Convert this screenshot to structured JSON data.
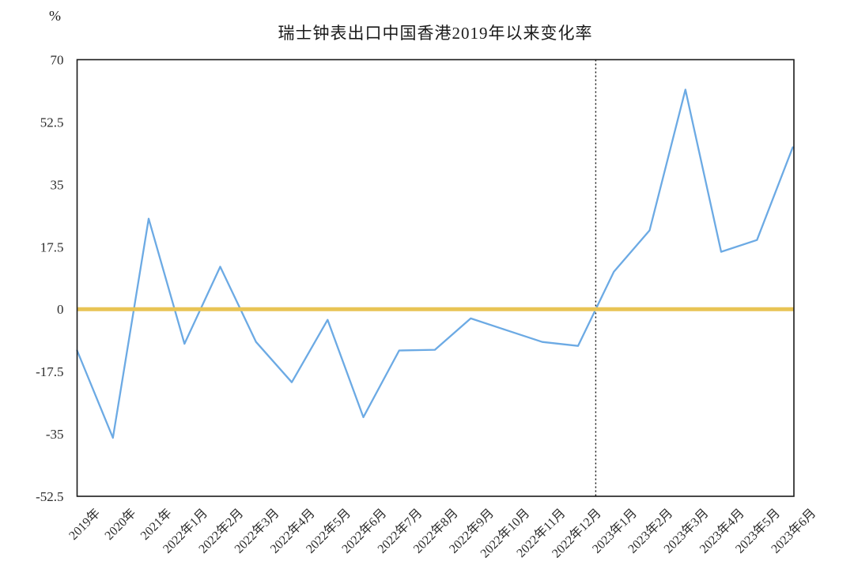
{
  "page": {
    "unit_label": "%"
  },
  "chart_data": {
    "type": "line",
    "title": "瑞士钟表出口中国香港2019年以来变化率",
    "unit": "%",
    "xlabel": "",
    "ylabel": "%",
    "categories": [
      "2019年",
      "2020年",
      "2021年",
      "2022年1月",
      "2022年2月",
      "2022年3月",
      "2022年4月",
      "2022年5月",
      "2022年6月",
      "2022年7月",
      "2022年8月",
      "2022年9月",
      "2022年10月",
      "2022年11月",
      "2022年12月",
      "2023年1月",
      "2023年2月",
      "2023年3月",
      "2023年4月",
      "2023年5月",
      "2023年6月"
    ],
    "values": [
      -11.6,
      -36.1,
      25.4,
      -9.7,
      11.9,
      -9.2,
      -20.5,
      -3.0,
      -30.3,
      -11.6,
      -11.4,
      -2.6,
      -5.9,
      -9.2,
      -10.3,
      10.5,
      22.1,
      61.6,
      16.1,
      19.4,
      45.4
    ],
    "ylim": [
      -52.5,
      70
    ],
    "yticks": [
      70,
      52.5,
      35,
      17.5,
      0,
      -17.5,
      -35,
      -52.5
    ],
    "grid": false,
    "legend": "none",
    "series_color": "#6CAAE4",
    "zero_line_color": "#E8C455",
    "axis_color": "#1a1a1a",
    "tick_label_color": "#2b2b2b",
    "divider": {
      "style": "dashed-vertical",
      "between": [
        "2022年12月",
        "2023年1月"
      ],
      "at_value": 0
    }
  }
}
